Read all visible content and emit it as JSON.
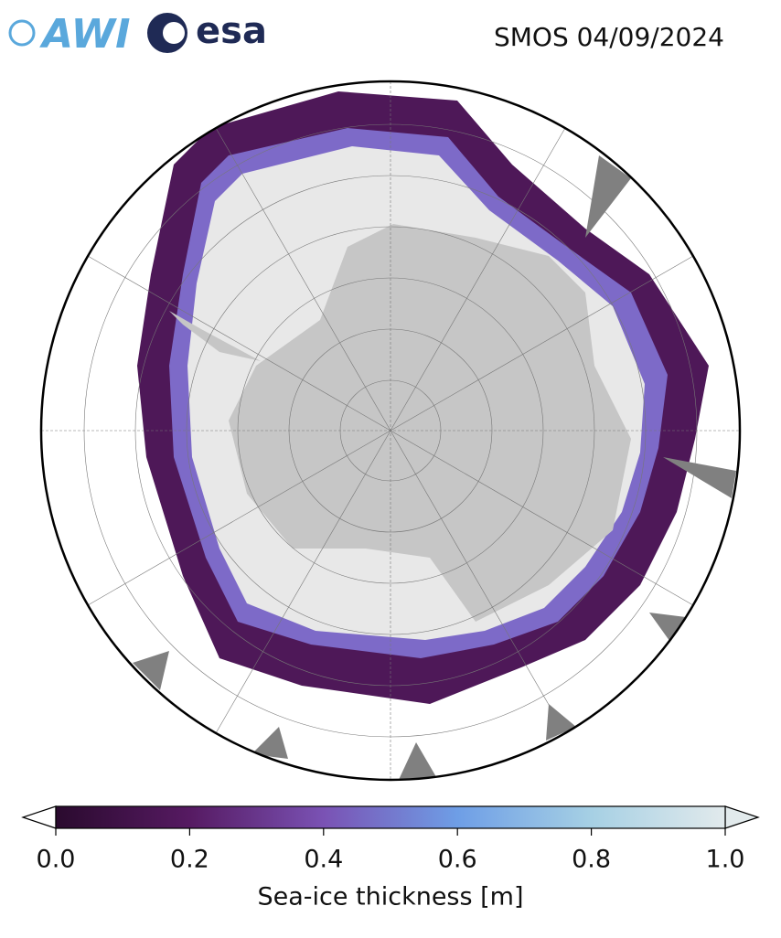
{
  "logos": {
    "awi": "AWI",
    "esa": "esa"
  },
  "map": {
    "title": "SMOS 04/09/2024"
  },
  "colorbar": {
    "label": "Sea-ice thickness [m]",
    "lim": [
      0,
      1
    ],
    "ticks": [
      {
        "value": 0,
        "label": "0.0"
      },
      {
        "value": 0.2,
        "label": "0.2"
      },
      {
        "value": 0.4,
        "label": "0.4"
      },
      {
        "value": 0.6,
        "label": "0.6"
      },
      {
        "value": 0.8,
        "label": "0.8"
      },
      {
        "value": 1,
        "label": "1.0"
      }
    ]
  }
}
